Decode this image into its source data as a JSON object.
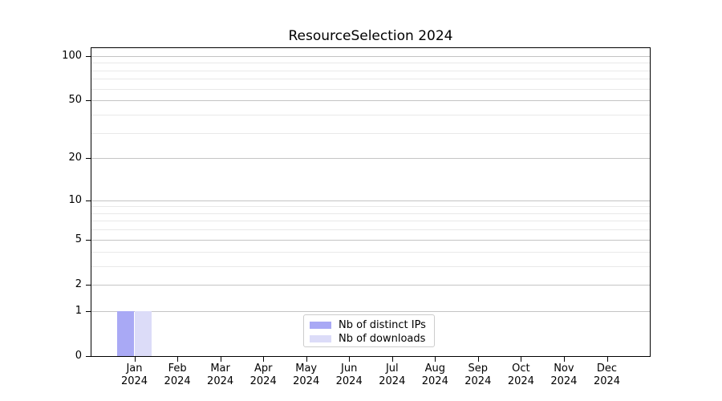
{
  "chart_data": {
    "type": "bar",
    "title": "ResourceSelection 2024",
    "categories": [
      "Jan",
      "Feb",
      "Mar",
      "Apr",
      "May",
      "Jun",
      "Jul",
      "Aug",
      "Sep",
      "Oct",
      "Nov",
      "Dec"
    ],
    "category_sublabel": "2024",
    "series": [
      {
        "name": "Nb of distinct IPs",
        "color": "#a9a9f5",
        "values": [
          1,
          0,
          0,
          0,
          0,
          0,
          0,
          0,
          0,
          0,
          0,
          0
        ]
      },
      {
        "name": "Nb of downloads",
        "color": "#dcdcf8",
        "values": [
          1,
          0,
          0,
          0,
          0,
          0,
          0,
          0,
          0,
          0,
          0,
          0
        ]
      }
    ],
    "xlabel": "",
    "ylabel": "",
    "yscale": "log1p",
    "ylim": [
      0,
      113
    ],
    "yticks": [
      0,
      1,
      2,
      5,
      10,
      20,
      50,
      100
    ],
    "yticks_minor": [
      3,
      4,
      6,
      7,
      8,
      9,
      30,
      40,
      60,
      70,
      80,
      90
    ],
    "grid": true,
    "legend_position": "lower center"
  }
}
